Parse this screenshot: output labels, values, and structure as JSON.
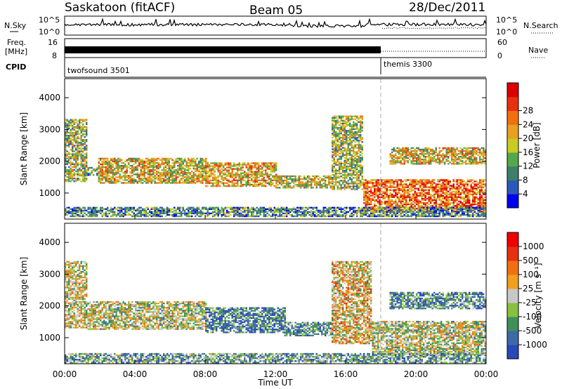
{
  "header": {
    "station": "Saskatoon (fitACF)",
    "beam": "Beam 05",
    "date": "28/Dec/2011"
  },
  "top_panels": {
    "sky_label": "N.Sky",
    "sky_ticks": [
      "10^5",
      "10^0"
    ],
    "right_ticks": [
      "10^5",
      "10^0"
    ],
    "search_label": "N.Search",
    "freq_label_1": "Freq.",
    "freq_label_2": "[MHz]",
    "freq_ticks": [
      "16",
      "8"
    ],
    "nave_ticks": [
      "60",
      "0"
    ],
    "nave_label": "Nave",
    "cpid_label": "CPID",
    "cpid_modes": [
      {
        "name": "twofsound 3501",
        "start_hour": 0,
        "end_hour": 18
      },
      {
        "name": "themis 3300",
        "start_hour": 18,
        "end_hour": 24
      }
    ]
  },
  "x_axis": {
    "label": "Time UT",
    "ticks": [
      "00:00",
      "04:00",
      "08:00",
      "12:00",
      "16:00",
      "20:00",
      "00:00"
    ],
    "range_hours": [
      0,
      24
    ]
  },
  "chart_data": [
    {
      "type": "heatmap",
      "name": "power",
      "ylabel": "Slant Range [km]",
      "x_range_hours": [
        0,
        24
      ],
      "ylim_km": [
        180,
        4600
      ],
      "yticks": [
        "1000",
        "2000",
        "3000",
        "4000"
      ],
      "yticks_km": [
        1000,
        2000,
        3000,
        4000
      ],
      "colorbar": {
        "label": "Power [dB]",
        "ticks": [
          "4",
          "8",
          "12",
          "16",
          "20",
          "24",
          "28"
        ],
        "colors": [
          "#0000ee",
          "#2a5ab8",
          "#3f7f6a",
          "#55a84a",
          "#c8cc22",
          "#e8a020",
          "#f07010",
          "#e83010",
          "#dd0000"
        ]
      },
      "bands": [
        {
          "start": 0.0,
          "end": 1.3,
          "low": 1350,
          "high": 3300,
          "level": 0.45
        },
        {
          "start": 1.3,
          "end": 1.9,
          "low": 1550,
          "high": 1800,
          "level": 0.35
        },
        {
          "start": 1.9,
          "end": 8.0,
          "low": 1300,
          "high": 2100,
          "level": 0.55
        },
        {
          "start": 8.0,
          "end": 12.0,
          "low": 1200,
          "high": 1950,
          "level": 0.6
        },
        {
          "start": 12.0,
          "end": 15.2,
          "low": 1150,
          "high": 1550,
          "level": 0.5
        },
        {
          "start": 15.2,
          "end": 17.0,
          "low": 1100,
          "high": 3400,
          "level": 0.45
        },
        {
          "start": 17.0,
          "end": 24.0,
          "low": 400,
          "high": 1400,
          "level": 0.75
        },
        {
          "start": 18.5,
          "end": 24.0,
          "low": 1900,
          "high": 2400,
          "level": 0.55
        },
        {
          "start": 0.0,
          "end": 24.0,
          "low": 250,
          "high": 550,
          "level": 0.3
        }
      ]
    },
    {
      "type": "heatmap",
      "name": "velocity",
      "ylabel": "Slant Range [km]",
      "x_range_hours": [
        0,
        24
      ],
      "ylim_km": [
        180,
        4600
      ],
      "yticks": [
        "1000",
        "2000",
        "3000",
        "4000"
      ],
      "yticks_km": [
        1000,
        2000,
        3000,
        4000
      ],
      "colorbar": {
        "label": "Velocity [m s⁻¹]",
        "ticks": [
          "1000",
          "500",
          "100",
          "25",
          "-25",
          "-100",
          "-500",
          "-1000"
        ],
        "colors": [
          "#2a48b8",
          "#3b6aa8",
          "#3f8f5a",
          "#88c040",
          "#c8c8c8",
          "#f0a020",
          "#f07010",
          "#e83010",
          "#ee0000"
        ]
      },
      "bands": [
        {
          "start": 0.0,
          "end": 1.3,
          "low": 1300,
          "high": 3400,
          "level": 0.5
        },
        {
          "start": 1.3,
          "end": 8.0,
          "low": 1250,
          "high": 2150,
          "level": 0.45
        },
        {
          "start": 8.0,
          "end": 12.5,
          "low": 1150,
          "high": 1950,
          "level": 0.2
        },
        {
          "start": 12.5,
          "end": 15.2,
          "low": 1050,
          "high": 1500,
          "level": 0.25
        },
        {
          "start": 15.2,
          "end": 17.5,
          "low": 800,
          "high": 3400,
          "level": 0.55
        },
        {
          "start": 17.5,
          "end": 24.0,
          "low": 450,
          "high": 1500,
          "level": 0.45
        },
        {
          "start": 18.5,
          "end": 24.0,
          "low": 1900,
          "high": 2400,
          "level": 0.25
        },
        {
          "start": 0.0,
          "end": 24.0,
          "low": 200,
          "high": 500,
          "level": 0.3
        }
      ]
    }
  ]
}
